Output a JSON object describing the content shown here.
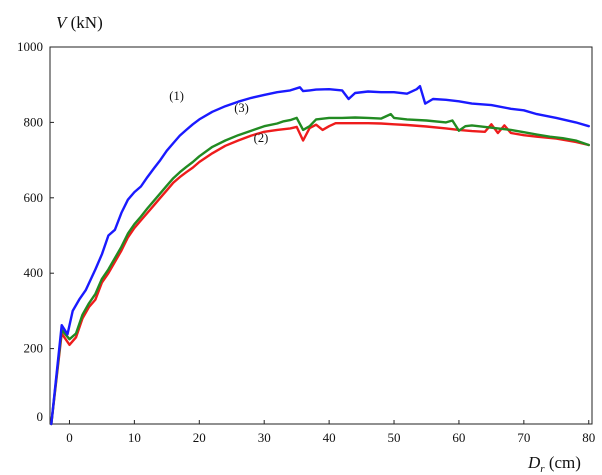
{
  "chart_data": {
    "type": "line",
    "title": "",
    "ylabel_var": "V",
    "ylabel_unit": " (kN)",
    "xlabel_var": "D",
    "xlabel_sub": "r",
    "xlabel_unit": " (cm)",
    "xlim": [
      -3,
      80.5
    ],
    "ylim": [
      0,
      1000
    ],
    "xticks": [
      0,
      10,
      20,
      30,
      40,
      50,
      60,
      70,
      80
    ],
    "yticks": [
      0,
      200,
      400,
      600,
      800,
      1000
    ],
    "grid": false,
    "series": [
      {
        "name": "(1)",
        "color": "#1a1aff",
        "label_at": [
          16.5,
          860
        ],
        "points": [
          [
            -2.8,
            0
          ],
          [
            -1.2,
            262
          ],
          [
            -0.3,
            238
          ],
          [
            0.5,
            300
          ],
          [
            1.5,
            330
          ],
          [
            2.5,
            355
          ],
          [
            4,
            410
          ],
          [
            5,
            450
          ],
          [
            6,
            500
          ],
          [
            7,
            515
          ],
          [
            8,
            560
          ],
          [
            9,
            595
          ],
          [
            10,
            615
          ],
          [
            11,
            630
          ],
          [
            12,
            655
          ],
          [
            13,
            678
          ],
          [
            14,
            700
          ],
          [
            15,
            725
          ],
          [
            16,
            745
          ],
          [
            17,
            765
          ],
          [
            18,
            780
          ],
          [
            19,
            795
          ],
          [
            20,
            808
          ],
          [
            22,
            828
          ],
          [
            24,
            843
          ],
          [
            26,
            855
          ],
          [
            28,
            865
          ],
          [
            30,
            873
          ],
          [
            32,
            880
          ],
          [
            34,
            885
          ],
          [
            35.5,
            893
          ],
          [
            36,
            883
          ],
          [
            37,
            885
          ],
          [
            38,
            887
          ],
          [
            40,
            888
          ],
          [
            42,
            885
          ],
          [
            43,
            862
          ],
          [
            44,
            878
          ],
          [
            46,
            882
          ],
          [
            48,
            880
          ],
          [
            50,
            880
          ],
          [
            52,
            876
          ],
          [
            53.5,
            888
          ],
          [
            54,
            896
          ],
          [
            54.8,
            850
          ],
          [
            56,
            862
          ],
          [
            58,
            860
          ],
          [
            60,
            856
          ],
          [
            62,
            850
          ],
          [
            65,
            846
          ],
          [
            68,
            836
          ],
          [
            70,
            832
          ],
          [
            72,
            822
          ],
          [
            75,
            812
          ],
          [
            78,
            800
          ],
          [
            80,
            790
          ]
        ]
      },
      {
        "name": "(2)",
        "color": "#ee1c1c",
        "label_at": [
          29.5,
          748
        ],
        "points": [
          [
            -2.8,
            0
          ],
          [
            -1.2,
            240
          ],
          [
            0,
            210
          ],
          [
            1,
            230
          ],
          [
            2,
            280
          ],
          [
            3,
            310
          ],
          [
            4,
            330
          ],
          [
            5,
            375
          ],
          [
            6,
            400
          ],
          [
            7,
            430
          ],
          [
            8,
            460
          ],
          [
            9,
            495
          ],
          [
            10,
            520
          ],
          [
            11,
            540
          ],
          [
            12,
            560
          ],
          [
            13,
            580
          ],
          [
            14,
            600
          ],
          [
            15,
            620
          ],
          [
            16,
            640
          ],
          [
            17,
            655
          ],
          [
            18,
            668
          ],
          [
            19,
            680
          ],
          [
            20,
            695
          ],
          [
            22,
            718
          ],
          [
            24,
            738
          ],
          [
            26,
            752
          ],
          [
            28,
            765
          ],
          [
            30,
            775
          ],
          [
            32,
            780
          ],
          [
            34,
            784
          ],
          [
            35,
            788
          ],
          [
            36,
            752
          ],
          [
            37,
            785
          ],
          [
            38,
            794
          ],
          [
            39,
            780
          ],
          [
            40,
            790
          ],
          [
            41,
            798
          ],
          [
            42,
            798
          ],
          [
            44,
            798
          ],
          [
            46,
            798
          ],
          [
            48,
            797
          ],
          [
            50,
            795
          ],
          [
            52,
            793
          ],
          [
            55,
            789
          ],
          [
            58,
            784
          ],
          [
            60,
            780
          ],
          [
            62,
            777
          ],
          [
            64,
            775
          ],
          [
            65,
            795
          ],
          [
            66,
            772
          ],
          [
            67,
            792
          ],
          [
            68,
            772
          ],
          [
            70,
            766
          ],
          [
            72,
            762
          ],
          [
            75,
            757
          ],
          [
            78,
            748
          ],
          [
            80,
            740
          ]
        ]
      },
      {
        "name": "(3)",
        "color": "#228b22",
        "label_at": [
          26.5,
          828
        ],
        "points": [
          [
            -2.8,
            0
          ],
          [
            -1.2,
            250
          ],
          [
            0,
            225
          ],
          [
            1,
            240
          ],
          [
            2,
            290
          ],
          [
            3,
            320
          ],
          [
            4,
            345
          ],
          [
            5,
            385
          ],
          [
            6,
            410
          ],
          [
            7,
            440
          ],
          [
            8,
            470
          ],
          [
            9,
            505
          ],
          [
            10,
            530
          ],
          [
            11,
            550
          ],
          [
            12,
            572
          ],
          [
            13,
            592
          ],
          [
            14,
            612
          ],
          [
            15,
            632
          ],
          [
            16,
            652
          ],
          [
            17,
            668
          ],
          [
            18,
            682
          ],
          [
            19,
            695
          ],
          [
            20,
            710
          ],
          [
            22,
            735
          ],
          [
            24,
            752
          ],
          [
            26,
            766
          ],
          [
            28,
            778
          ],
          [
            30,
            790
          ],
          [
            32,
            797
          ],
          [
            33,
            803
          ],
          [
            34,
            806
          ],
          [
            35,
            812
          ],
          [
            36,
            780
          ],
          [
            37,
            790
          ],
          [
            38,
            808
          ],
          [
            40,
            812
          ],
          [
            42,
            812
          ],
          [
            44,
            813
          ],
          [
            46,
            812
          ],
          [
            48,
            810
          ],
          [
            49.5,
            822
          ],
          [
            50,
            812
          ],
          [
            52,
            808
          ],
          [
            55,
            805
          ],
          [
            58,
            800
          ],
          [
            59,
            805
          ],
          [
            60,
            778
          ],
          [
            61,
            790
          ],
          [
            62,
            792
          ],
          [
            64,
            788
          ],
          [
            66,
            784
          ],
          [
            68,
            780
          ],
          [
            70,
            774
          ],
          [
            72,
            768
          ],
          [
            74,
            762
          ],
          [
            76,
            758
          ],
          [
            78,
            752
          ],
          [
            80,
            740
          ]
        ]
      }
    ]
  }
}
